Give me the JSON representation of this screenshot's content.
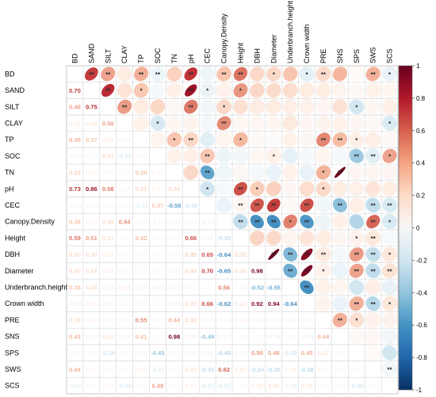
{
  "chart_data": {
    "type": "heatmap",
    "variables": [
      "BD",
      "SAND",
      "SILT",
      "CLAY",
      "TP",
      "SOC",
      "TN",
      "pH",
      "CEC",
      "Canopy.Density",
      "Height",
      "DBH",
      "Diameter",
      "Underbranch.height",
      "Crown width",
      "PRE",
      "SNS",
      "SPS",
      "SWS",
      "SCS"
    ],
    "lower_triangle_values": [
      [],
      [
        "0.70"
      ],
      [
        "0.48",
        "0.75"
      ],
      [
        "0.21",
        "0.25",
        "0.50"
      ],
      [
        "0.45",
        "0.37",
        "0.21",
        "0.15"
      ],
      [
        "-0.18",
        "-0.11",
        "0.31",
        "-0.28",
        "0.13"
      ],
      [
        "0.33",
        "0.18",
        "0.08",
        "0.11",
        "0.38",
        "0.16"
      ],
      [
        "0.73",
        "0.86",
        "0.58",
        "0.14",
        "0.31",
        "0.17",
        "0.30"
      ],
      [
        "-0.16",
        "-0.17",
        "-0.13",
        "-0.12",
        "-0.23",
        "0.37",
        "-0.58",
        "-0.30"
      ],
      [
        "0.38",
        "0.15",
        "0.30",
        "0.54",
        "0.13",
        "-0.17",
        "-0.15",
        "-0.08",
        "-0.19"
      ],
      [
        "0.59",
        "0.51",
        "0.27",
        "0.11",
        "0.42",
        "-0.13",
        "0.09",
        "0.66",
        "0.12",
        "-0.35"
      ],
      [
        "0.30",
        "0.30",
        "0.21",
        "0.10",
        "0.06",
        "0.11",
        "-0.10",
        "0.35",
        "0.65",
        "-0.64",
        "0.32"
      ],
      [
        "0.30",
        "0.29",
        "0.21",
        "0.11",
        "0.03",
        "0.17",
        "-0.20",
        "0.33",
        "0.70",
        "-0.65",
        "0.30",
        "0.98"
      ],
      [
        "0.38",
        "0.28",
        "0.19",
        "0.22",
        "0.15",
        "-0.21",
        "0.15",
        "0.10",
        "0.08",
        "0.56",
        "0.13",
        "-0.52",
        "-0.55"
      ],
      [
        "-0.21",
        "0.21",
        "0.16",
        "0.10",
        "0.09",
        "-0.09",
        "-0.20",
        "0.28",
        "0.66",
        "-0.62",
        "0.24",
        "0.92",
        "0.94",
        "-0.64"
      ],
      [
        "0.29",
        "0.20",
        "0.10",
        "0.14",
        "0.55",
        "0.13",
        "0.44",
        "0.30",
        "-0.15",
        "-0.16",
        "0.20",
        "0.21",
        "0.15",
        "0.16",
        "0.14"
      ],
      [
        "0.43",
        "0.13",
        "0.26",
        "0.15",
        "0.41",
        "-0.10",
        "0.98",
        "0.20",
        "-0.49",
        "0.17",
        "0.09",
        "-0.10",
        "-0.18",
        "0.12",
        "-0.19",
        "0.44"
      ],
      [
        "0.05",
        "0.08",
        "-0.29",
        "0.10",
        "0.18",
        "-0.45",
        "0.10",
        "0.16",
        "0.19",
        "-0.40",
        "0.16",
        "0.50",
        "0.48",
        "-0.29",
        "0.45",
        "0.27",
        "0.07"
      ],
      [
        "0.44",
        "0.16",
        "0.11",
        "0.08",
        "0.19",
        "-0.23",
        "0.12",
        "0.24",
        "-0.35",
        "0.62",
        "0.23",
        "-0.34",
        "-0.35",
        "0.19",
        "-0.38",
        "0.15",
        "0.10",
        "0.05"
      ],
      [
        "-0.20",
        "0.11",
        "0.17",
        "-0.26",
        "0.08",
        "0.48",
        "0.10",
        "0.20",
        "-0.27",
        "-0.27",
        "-0.09",
        "0.23",
        "0.26",
        "-0.20",
        "0.23",
        "0.14",
        "-0.13",
        "-0.29",
        "-0.12"
      ]
    ],
    "upper_triangle_significance": [
      [
        null,
        "**",
        "**",
        "",
        "**",
        "**",
        "",
        "**",
        "",
        "**",
        "**",
        "",
        "*",
        "",
        "*",
        "**",
        "",
        "",
        "**",
        "*"
      ],
      [
        null,
        null,
        "**",
        "",
        "*",
        "",
        "",
        "**",
        "*",
        "",
        "*",
        "",
        "",
        "",
        "",
        "",
        "",
        "",
        "",
        ""
      ],
      [
        null,
        null,
        null,
        "**",
        "",
        "",
        "",
        "**",
        "",
        "*",
        "",
        "",
        "",
        "",
        "",
        "",
        "",
        "*",
        "",
        ""
      ],
      [
        null,
        null,
        null,
        null,
        "",
        "*",
        "",
        "",
        "",
        "**",
        "",
        "",
        "",
        "",
        "",
        "",
        "",
        "",
        "",
        "*"
      ],
      [
        null,
        null,
        null,
        null,
        null,
        "",
        "*",
        "**",
        "",
        "",
        "*",
        "",
        "",
        "",
        "",
        "**",
        "**",
        "*",
        "",
        ""
      ],
      [
        null,
        null,
        null,
        null,
        null,
        null,
        "",
        "",
        "**",
        "",
        "",
        "",
        "*",
        "",
        "",
        "",
        "",
        "**",
        "**",
        "*"
      ],
      [
        null,
        null,
        null,
        null,
        null,
        null,
        null,
        "",
        "**",
        "",
        "",
        "",
        "",
        "",
        "",
        "*",
        "**",
        "",
        "",
        ""
      ],
      [
        null,
        null,
        null,
        null,
        null,
        null,
        null,
        null,
        "*",
        "",
        "**",
        "*",
        "",
        "",
        "",
        "*",
        "",
        "",
        "",
        ""
      ],
      [
        null,
        null,
        null,
        null,
        null,
        null,
        null,
        null,
        null,
        "",
        "**",
        "**",
        "**",
        "",
        "**",
        "",
        "**",
        "",
        "**",
        "**"
      ],
      [
        null,
        null,
        null,
        null,
        null,
        null,
        null,
        null,
        null,
        null,
        "**",
        "**",
        "**",
        "*",
        "**",
        "",
        "",
        "",
        "**",
        "*"
      ],
      [
        null,
        null,
        null,
        null,
        null,
        null,
        null,
        null,
        null,
        null,
        null,
        "",
        "",
        "",
        "",
        "",
        "",
        "*",
        "**",
        ""
      ],
      [
        null,
        null,
        null,
        null,
        null,
        null,
        null,
        null,
        null,
        null,
        null,
        null,
        "**",
        "**",
        "**",
        "**",
        "",
        "**",
        "**",
        "*"
      ],
      [
        null,
        null,
        null,
        null,
        null,
        null,
        null,
        null,
        null,
        null,
        null,
        null,
        null,
        "**",
        "**",
        "*",
        "",
        "**",
        "**",
        "**"
      ],
      [
        null,
        null,
        null,
        null,
        null,
        null,
        null,
        null,
        null,
        null,
        null,
        null,
        null,
        null,
        "**",
        "",
        "",
        "",
        "",
        ""
      ],
      [
        null,
        null,
        null,
        null,
        null,
        null,
        null,
        null,
        null,
        null,
        null,
        null,
        null,
        null,
        null,
        "",
        "",
        "**",
        "**",
        "*"
      ],
      [
        null,
        null,
        null,
        null,
        null,
        null,
        null,
        null,
        null,
        null,
        null,
        null,
        null,
        null,
        null,
        null,
        "**",
        "*",
        "",
        ""
      ],
      [
        null,
        null,
        null,
        null,
        null,
        null,
        null,
        null,
        null,
        null,
        null,
        null,
        null,
        null,
        null,
        null,
        null,
        "",
        "",
        ""
      ],
      [
        null,
        null,
        null,
        null,
        null,
        null,
        null,
        null,
        null,
        null,
        null,
        null,
        null,
        null,
        null,
        null,
        null,
        null,
        "",
        ""
      ],
      [
        null,
        null,
        null,
        null,
        null,
        null,
        null,
        null,
        null,
        null,
        null,
        null,
        null,
        null,
        null,
        null,
        null,
        null,
        null,
        "**"
      ],
      []
    ],
    "colorbar": {
      "range": [
        -1,
        1
      ],
      "ticks": [
        "1",
        "0.8",
        "0.6",
        "0.4",
        "0.2",
        "0",
        "-0.2",
        "-0.4",
        "-0.6",
        "-0.8",
        "-1"
      ],
      "colors": [
        "#67001f",
        "#b2182b",
        "#d6604d",
        "#f4a582",
        "#fddbc7",
        "#f7f7f7",
        "#d1e5f0",
        "#92c5de",
        "#4393c3",
        "#2166ac",
        "#053061"
      ]
    }
  }
}
